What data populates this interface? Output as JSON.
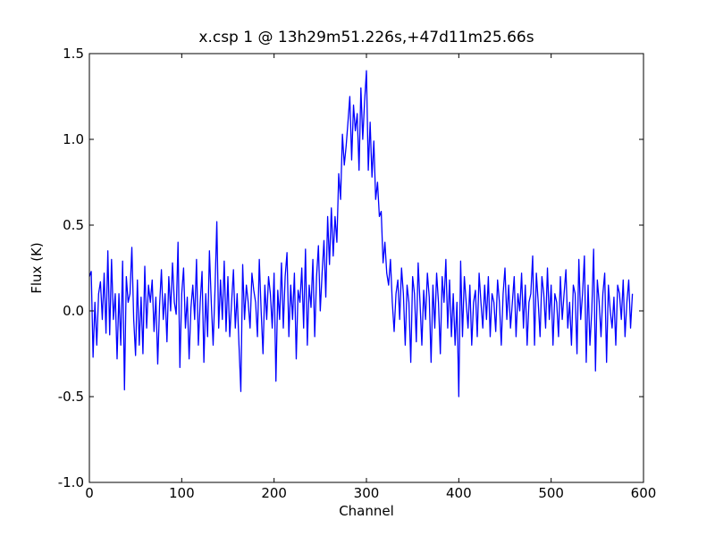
{
  "chart_data": {
    "type": "line",
    "title": "x.csp 1 @ 13h29m51.226s,+47d11m25.66s",
    "x_label": "Channel",
    "y_label": "Flux (K)",
    "xlim": [
      0,
      600
    ],
    "xticks": [
      0,
      100,
      200,
      300,
      400,
      500,
      600
    ],
    "ylim": [
      -1.0,
      1.5
    ],
    "yticks": [
      {
        "value": -1.0,
        "label": "-1.0"
      },
      -0.5,
      {
        "value": 0.0,
        "label": "0.0"
      },
      0.5,
      {
        "value": 1.0,
        "label": "1.0"
      },
      1.5
    ],
    "color": "#0000ff",
    "x": [
      0,
      2,
      4,
      6,
      8,
      10,
      12,
      14,
      16,
      18,
      20,
      22,
      24,
      26,
      28,
      30,
      32,
      34,
      36,
      38,
      40,
      42,
      44,
      46,
      48,
      50,
      52,
      54,
      56,
      58,
      60,
      62,
      64,
      66,
      68,
      70,
      72,
      74,
      76,
      78,
      80,
      82,
      84,
      86,
      88,
      90,
      92,
      94,
      96,
      98,
      100,
      102,
      104,
      106,
      108,
      110,
      112,
      114,
      116,
      118,
      120,
      122,
      124,
      126,
      128,
      130,
      132,
      134,
      136,
      138,
      140,
      142,
      144,
      146,
      148,
      150,
      152,
      154,
      156,
      158,
      160,
      162,
      164,
      166,
      168,
      170,
      172,
      174,
      176,
      178,
      180,
      182,
      184,
      186,
      188,
      190,
      192,
      194,
      196,
      198,
      200,
      202,
      204,
      206,
      208,
      210,
      212,
      214,
      216,
      218,
      220,
      222,
      224,
      226,
      228,
      230,
      232,
      234,
      236,
      238,
      240,
      242,
      244,
      246,
      248,
      250,
      252,
      254,
      256,
      258,
      260,
      262,
      264,
      266,
      268,
      270,
      272,
      274,
      276,
      278,
      280,
      282,
      284,
      286,
      288,
      290,
      292,
      294,
      296,
      298,
      300,
      302,
      304,
      306,
      308,
      310,
      312,
      314,
      316,
      318,
      320,
      322,
      324,
      326,
      328,
      330,
      332,
      334,
      336,
      338,
      340,
      342,
      344,
      346,
      348,
      350,
      352,
      354,
      356,
      358,
      360,
      362,
      364,
      366,
      368,
      370,
      372,
      374,
      376,
      378,
      380,
      382,
      384,
      386,
      388,
      390,
      392,
      394,
      396,
      398,
      400,
      402,
      404,
      406,
      408,
      410,
      412,
      414,
      416,
      418,
      420,
      422,
      424,
      426,
      428,
      430,
      432,
      434,
      436,
      438,
      440,
      442,
      444,
      446,
      448,
      450,
      452,
      454,
      456,
      458,
      460,
      462,
      464,
      466,
      468,
      470,
      472,
      474,
      476,
      478,
      480,
      482,
      484,
      486,
      488,
      490,
      492,
      494,
      496,
      498,
      500,
      502,
      504,
      506,
      508,
      510,
      512,
      514,
      516,
      518,
      520,
      522,
      524,
      526,
      528,
      530,
      532,
      534,
      536,
      538,
      540,
      542,
      544,
      546,
      548,
      550,
      552,
      554,
      556,
      558,
      560,
      562,
      564,
      566,
      568,
      570,
      572,
      574,
      576,
      578,
      580,
      582,
      584,
      586,
      588
    ],
    "values": [
      0.2,
      0.23,
      -0.27,
      0.05,
      -0.2,
      0.1,
      0.17,
      -0.05,
      0.22,
      -0.13,
      0.35,
      -0.14,
      0.3,
      -0.05,
      0.1,
      -0.28,
      0.1,
      -0.2,
      0.29,
      -0.46,
      0.2,
      0.05,
      0.1,
      0.37,
      -0.05,
      -0.26,
      0.18,
      -0.2,
      0.08,
      -0.25,
      0.26,
      -0.1,
      0.15,
      0.05,
      0.18,
      -0.12,
      0.08,
      -0.31,
      0.03,
      0.24,
      -0.05,
      0.1,
      -0.18,
      0.2,
      0.0,
      0.28,
      0.05,
      -0.02,
      0.4,
      -0.33,
      0.1,
      0.25,
      -0.1,
      0.08,
      -0.28,
      0.02,
      0.15,
      -0.05,
      0.3,
      -0.2,
      0.05,
      0.23,
      -0.3,
      0.1,
      -0.15,
      0.35,
      0.05,
      -0.2,
      0.12,
      0.52,
      -0.1,
      0.18,
      -0.05,
      0.29,
      -0.12,
      0.2,
      -0.15,
      0.05,
      0.24,
      -0.1,
      0.1,
      -0.2,
      -0.47,
      0.27,
      -0.05,
      0.15,
      0.05,
      -0.1,
      0.22,
      0.12,
      0.05,
      -0.15,
      0.3,
      0.0,
      -0.25,
      0.15,
      -0.05,
      0.2,
      0.1,
      -0.1,
      0.22,
      -0.41,
      0.12,
      -0.05,
      0.28,
      -0.1,
      0.2,
      0.34,
      -0.15,
      0.15,
      -0.05,
      0.22,
      -0.28,
      0.12,
      0.05,
      0.25,
      -0.1,
      0.36,
      -0.2,
      0.15,
      0.02,
      0.3,
      -0.15,
      0.2,
      0.38,
      0.0,
      0.22,
      0.41,
      0.08,
      0.55,
      0.27,
      0.6,
      0.32,
      0.55,
      0.4,
      0.8,
      0.65,
      1.03,
      0.85,
      0.96,
      1.1,
      1.25,
      0.88,
      1.2,
      1.05,
      1.15,
      0.82,
      1.3,
      1.0,
      1.22,
      1.4,
      0.82,
      1.1,
      0.78,
      0.99,
      0.65,
      0.75,
      0.55,
      0.58,
      0.28,
      0.4,
      0.22,
      0.15,
      0.3,
      0.05,
      -0.12,
      0.1,
      0.18,
      -0.05,
      0.25,
      0.1,
      -0.2,
      0.15,
      0.05,
      -0.3,
      0.2,
      0.1,
      -0.18,
      0.28,
      0.05,
      -0.2,
      0.12,
      -0.05,
      0.22,
      0.08,
      -0.3,
      0.15,
      -0.1,
      0.22,
      0.05,
      -0.25,
      0.2,
      0.05,
      0.3,
      -0.1,
      0.18,
      -0.15,
      0.1,
      -0.2,
      0.05,
      -0.5,
      0.29,
      -0.15,
      0.2,
      0.05,
      -0.1,
      0.15,
      -0.2,
      0.05,
      0.12,
      -0.15,
      0.22,
      0.05,
      -0.1,
      0.15,
      -0.05,
      0.2,
      -0.15,
      0.1,
      0.05,
      -0.12,
      0.18,
      0.05,
      -0.2,
      0.1,
      0.25,
      -0.05,
      0.15,
      -0.1,
      0.05,
      0.2,
      -0.15,
      0.1,
      0.0,
      0.22,
      -0.1,
      0.15,
      -0.2,
      0.05,
      0.1,
      0.32,
      -0.2,
      0.22,
      0.05,
      -0.15,
      0.2,
      0.1,
      -0.1,
      0.25,
      -0.05,
      0.15,
      -0.2,
      0.1,
      0.05,
      -0.15,
      0.2,
      -0.05,
      0.1,
      0.24,
      -0.1,
      0.05,
      -0.2,
      0.15,
      0.1,
      -0.25,
      0.3,
      -0.05,
      0.1,
      0.32,
      -0.3,
      0.15,
      -0.2,
      0.0,
      0.36,
      -0.35,
      0.18,
      0.05,
      -0.15,
      0.1,
      0.22,
      -0.3,
      0.15,
      0.0,
      -0.1,
      0.08,
      -0.2,
      0.15,
      0.1,
      -0.05,
      0.18,
      -0.15,
      0.05,
      0.18,
      -0.1,
      0.1
    ]
  }
}
